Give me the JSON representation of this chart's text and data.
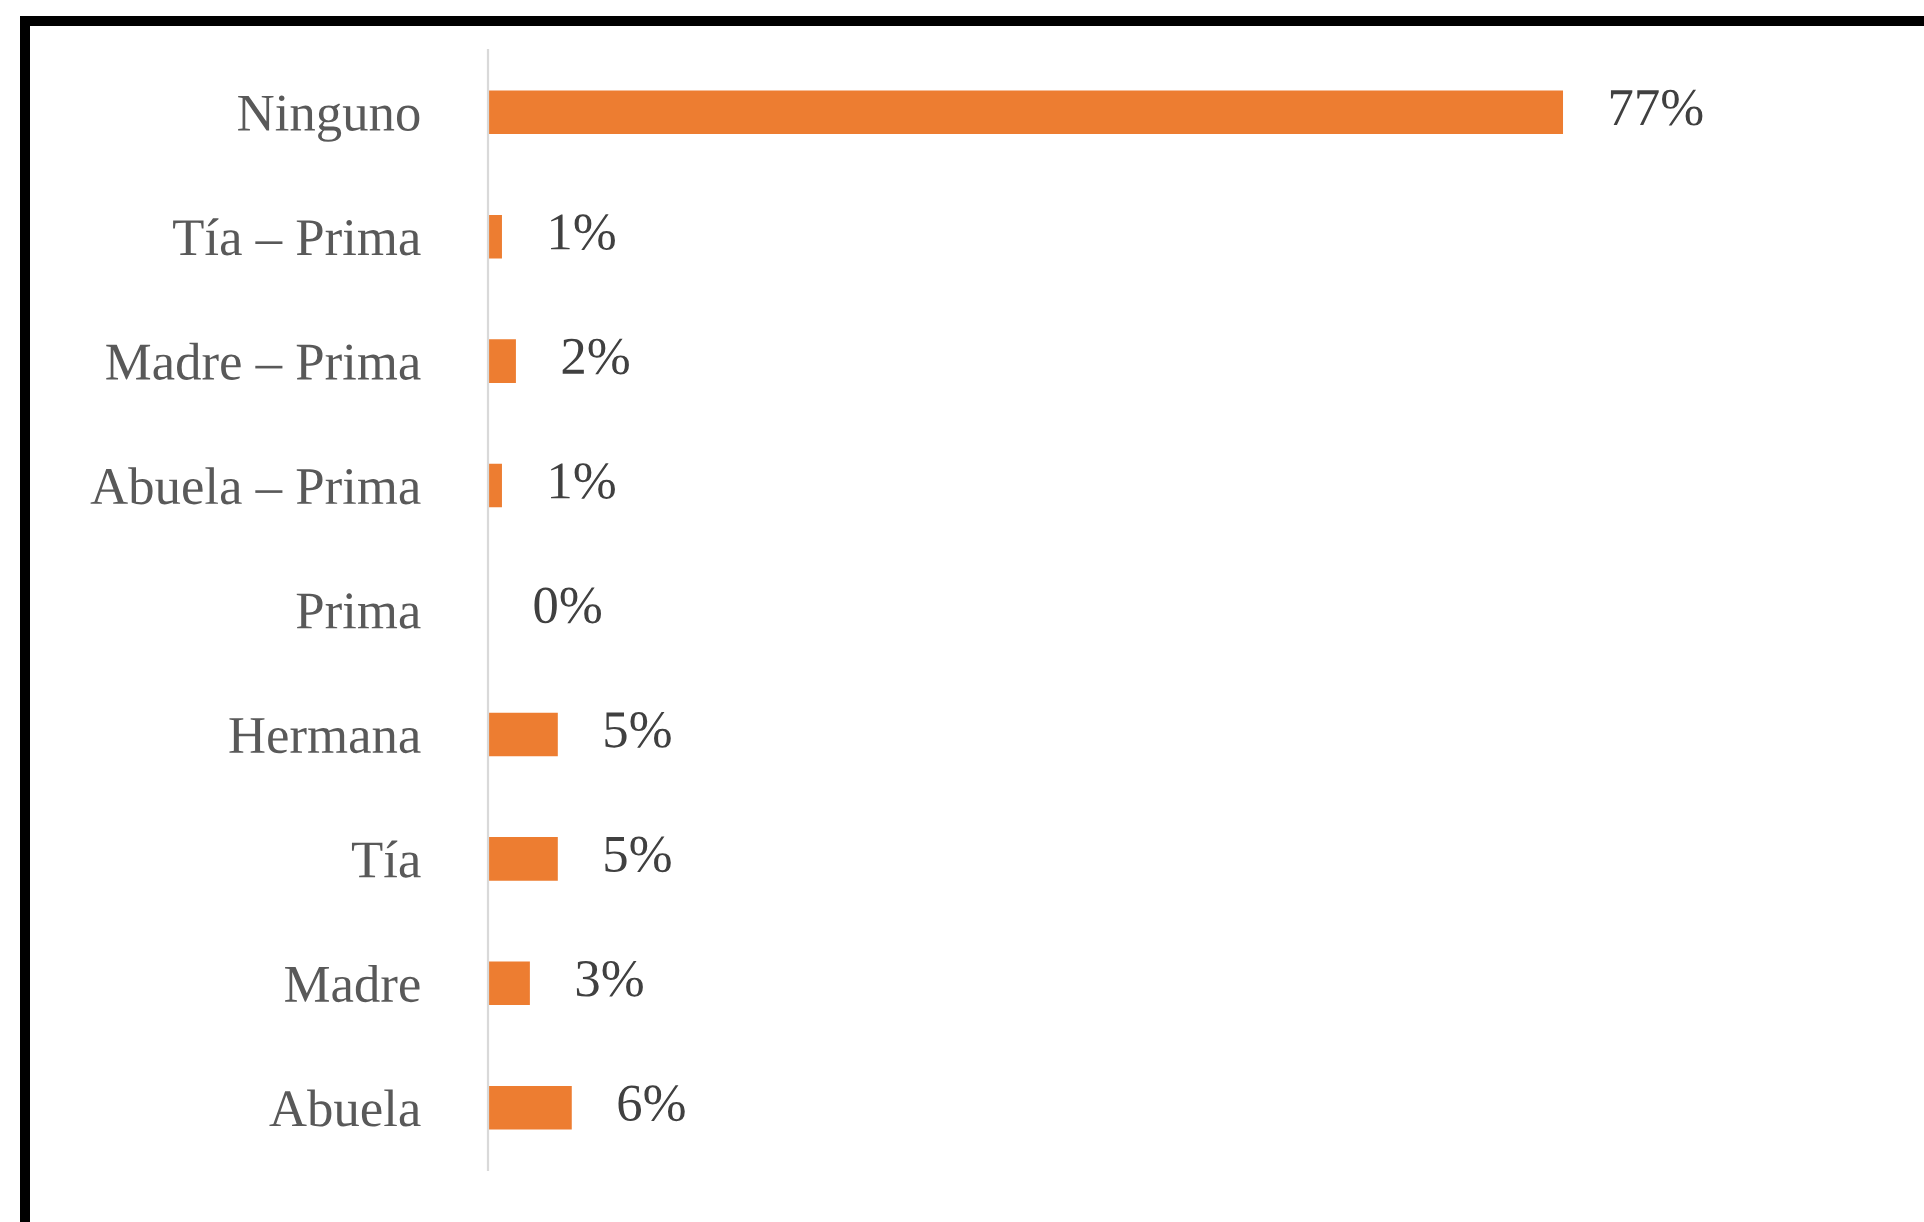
{
  "chart_data": {
    "type": "bar",
    "orientation": "horizontal",
    "categories": [
      "Ninguno",
      "Tía – Prima",
      "Madre – Prima",
      "Abuela – Prima",
      "Prima",
      "Hermana",
      "Tía",
      "Madre",
      "Abuela"
    ],
    "values": [
      77,
      1,
      2,
      1,
      0,
      5,
      5,
      3,
      6
    ],
    "value_labels": [
      "77%",
      "1%",
      "2%",
      "1%",
      "0%",
      "5%",
      "5%",
      "3%",
      "6%"
    ],
    "color": "#ed7d31",
    "grid": false,
    "legend": false
  }
}
